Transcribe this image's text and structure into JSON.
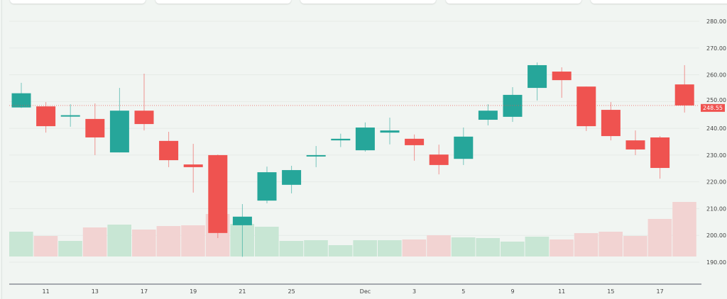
{
  "chart_data": {
    "type": "candlestick",
    "title": "",
    "xlabel": "",
    "ylabel": "",
    "ylim": [
      187,
      283
    ],
    "y_ticks": [
      "190.00",
      "200.00",
      "210.00",
      "220.00",
      "230.00",
      "240.00",
      "250.00",
      "260.00",
      "270.00",
      "280.00"
    ],
    "y_tick_values": [
      190,
      200,
      210,
      220,
      230,
      240,
      250,
      260,
      270,
      280
    ],
    "x_tick_labels": [
      {
        "index": 1,
        "label": "11"
      },
      {
        "index": 3,
        "label": "13"
      },
      {
        "index": 5,
        "label": "17"
      },
      {
        "index": 7,
        "label": "19"
      },
      {
        "index": 9,
        "label": "21"
      },
      {
        "index": 11,
        "label": "25"
      },
      {
        "index": 14,
        "label": "Dec"
      },
      {
        "index": 16,
        "label": "3"
      },
      {
        "index": 18,
        "label": "5"
      },
      {
        "index": 20,
        "label": "9"
      },
      {
        "index": 22,
        "label": "11"
      },
      {
        "index": 24,
        "label": "15"
      },
      {
        "index": 26,
        "label": "17"
      }
    ],
    "current_price": 248.55,
    "current_price_label": "248.55",
    "grid": true,
    "colors": {
      "up": "#26a69a",
      "down": "#ef5350",
      "up_volume": "#c8e6d4",
      "down_volume": "#f2d3d2",
      "price_line": "#ef5350"
    },
    "candles": [
      {
        "o": 247.8,
        "h": 257.0,
        "l": 247.6,
        "c": 253.1,
        "v": 35
      },
      {
        "o": 248.2,
        "h": 249.8,
        "l": 238.4,
        "c": 240.8,
        "v": 29
      },
      {
        "o": 244.7,
        "h": 249.0,
        "l": 240.6,
        "c": 244.9,
        "v": 22
      },
      {
        "o": 243.5,
        "h": 249.3,
        "l": 230.0,
        "c": 236.6,
        "v": 41
      },
      {
        "o": 231.0,
        "h": 255.1,
        "l": 231.0,
        "c": 246.6,
        "v": 45
      },
      {
        "o": 246.6,
        "h": 260.4,
        "l": 239.2,
        "c": 241.6,
        "v": 38
      },
      {
        "o": 235.3,
        "h": 238.7,
        "l": 225.5,
        "c": 228.1,
        "v": 43
      },
      {
        "o": 226.5,
        "h": 234.2,
        "l": 216.0,
        "c": 225.5,
        "v": 44
      },
      {
        "o": 230.0,
        "h": 230.2,
        "l": 199.0,
        "c": 200.9,
        "v": 60
      },
      {
        "o": 203.8,
        "h": 211.7,
        "l": 192.0,
        "c": 207.0,
        "v": 46
      },
      {
        "o": 213.0,
        "h": 225.7,
        "l": 212.0,
        "c": 223.6,
        "v": 42
      },
      {
        "o": 218.9,
        "h": 226.0,
        "l": 215.7,
        "c": 224.4,
        "v": 22
      },
      {
        "o": 229.7,
        "h": 233.4,
        "l": 225.5,
        "c": 230.0,
        "v": 23
      },
      {
        "o": 235.5,
        "h": 238.0,
        "l": 233.0,
        "c": 236.1,
        "v": 16
      },
      {
        "o": 231.8,
        "h": 242.2,
        "l": 231.3,
        "c": 240.3,
        "v": 23
      },
      {
        "o": 238.4,
        "h": 244.0,
        "l": 234.0,
        "c": 239.2,
        "v": 23
      },
      {
        "o": 236.1,
        "h": 237.7,
        "l": 227.9,
        "c": 233.7,
        "v": 24
      },
      {
        "o": 230.2,
        "h": 233.9,
        "l": 222.8,
        "c": 226.3,
        "v": 30
      },
      {
        "o": 228.6,
        "h": 240.3,
        "l": 226.3,
        "c": 236.9,
        "v": 27
      },
      {
        "o": 243.2,
        "h": 249.0,
        "l": 241.1,
        "c": 246.6,
        "v": 26
      },
      {
        "o": 244.3,
        "h": 255.4,
        "l": 242.4,
        "c": 252.5,
        "v": 21
      },
      {
        "o": 255.1,
        "h": 264.6,
        "l": 250.4,
        "c": 263.6,
        "v": 28
      },
      {
        "o": 261.2,
        "h": 262.8,
        "l": 251.4,
        "c": 258.0,
        "v": 24
      },
      {
        "o": 255.6,
        "h": 255.6,
        "l": 239.0,
        "c": 240.8,
        "v": 33
      },
      {
        "o": 246.9,
        "h": 249.8,
        "l": 235.5,
        "c": 237.1,
        "v": 35
      },
      {
        "o": 235.5,
        "h": 239.2,
        "l": 230.0,
        "c": 232.1,
        "v": 29
      },
      {
        "o": 236.6,
        "h": 237.1,
        "l": 221.2,
        "c": 225.2,
        "v": 53
      },
      {
        "o": 256.4,
        "h": 263.6,
        "l": 245.9,
        "c": 248.55,
        "v": 77
      }
    ]
  }
}
